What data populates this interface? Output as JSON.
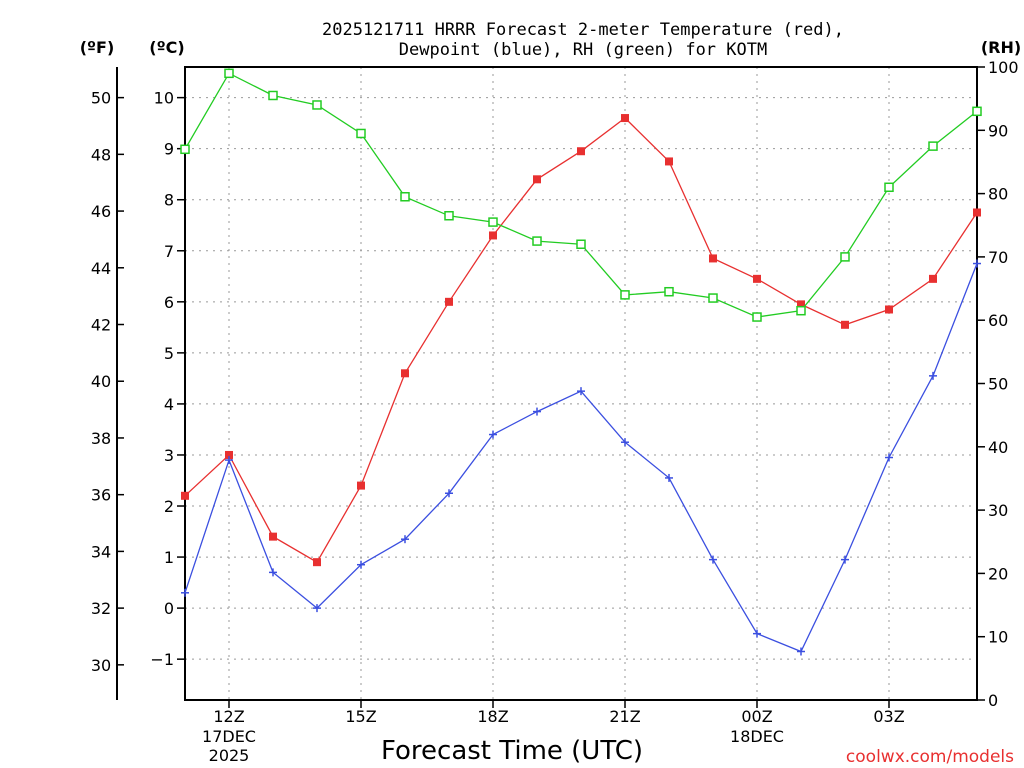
{
  "chart_data": {
    "type": "line",
    "title_line1": "2025121711 HRRR Forecast 2-meter Temperature (red),",
    "title_line2": "Dewpoint (blue), RH (green) for KOTM",
    "xlabel": "Forecast Time (UTC)",
    "watermark": "coolwx.com/models",
    "units": {
      "f": "(ºF)",
      "c": "(ºC)",
      "rh": "(RH)"
    },
    "x_hours": [
      11,
      12,
      13,
      14,
      15,
      16,
      17,
      18,
      19,
      20,
      21,
      22,
      23,
      24,
      25,
      26,
      27,
      28,
      29
    ],
    "x_ticks": [
      {
        "hour": 12,
        "label": "12Z",
        "sub1": "17DEC",
        "sub2": "2025"
      },
      {
        "hour": 15,
        "label": "15Z",
        "sub1": "",
        "sub2": ""
      },
      {
        "hour": 18,
        "label": "18Z",
        "sub1": "",
        "sub2": ""
      },
      {
        "hour": 21,
        "label": "21Z",
        "sub1": "",
        "sub2": ""
      },
      {
        "hour": 24,
        "label": "00Z",
        "sub1": "18DEC",
        "sub2": ""
      },
      {
        "hour": 27,
        "label": "03Z",
        "sub1": "",
        "sub2": ""
      }
    ],
    "xlim": [
      11,
      29
    ],
    "ylim_c": [
      -1.8,
      10.6
    ],
    "ylim_rh": [
      0,
      100
    ],
    "c_ticks": [
      "−1",
      "0",
      "1",
      "2",
      "3",
      "4",
      "5",
      "6",
      "7",
      "8",
      "9",
      "10"
    ],
    "f_ticks": [
      "30",
      "32",
      "34",
      "36",
      "38",
      "40",
      "42",
      "44",
      "46",
      "48",
      "50"
    ],
    "rh_ticks": [
      "0",
      "10",
      "20",
      "30",
      "40",
      "50",
      "60",
      "70",
      "80",
      "90",
      "100"
    ],
    "series": [
      {
        "name": "Temperature",
        "unit": "C",
        "color": "#e83030",
        "marker": "filled-square",
        "values": [
          2.2,
          3.0,
          1.4,
          0.9,
          2.4,
          4.6,
          6.0,
          7.3,
          8.4,
          8.95,
          9.6,
          8.75,
          6.85,
          6.45,
          5.95,
          5.55,
          5.85,
          6.45,
          7.75
        ]
      },
      {
        "name": "Dewpoint",
        "unit": "C",
        "color": "#3b4fe0",
        "marker": "plus",
        "values": [
          0.3,
          2.9,
          0.7,
          0.0,
          0.85,
          1.35,
          2.25,
          3.4,
          3.85,
          4.25,
          3.25,
          2.55,
          0.95,
          -0.5,
          -0.85,
          0.95,
          2.95,
          4.55,
          6.75
        ]
      },
      {
        "name": "RH",
        "unit": "%",
        "color": "#22cc22",
        "marker": "open-square",
        "values": [
          87,
          99,
          95.5,
          94,
          89.5,
          79.5,
          76.5,
          75.5,
          72.5,
          72,
          64,
          64.5,
          63.5,
          60.5,
          61.5,
          70,
          81,
          87.5,
          93
        ]
      }
    ]
  }
}
